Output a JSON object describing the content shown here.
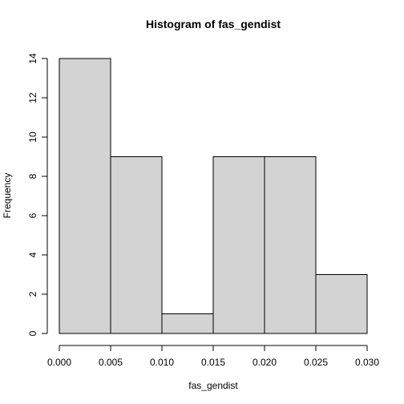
{
  "chart_data": {
    "type": "bar",
    "title": "Histogram of fas_gendist",
    "xlabel": "fas_gendist",
    "ylabel": "Frequency",
    "bin_edges": [
      0.0,
      0.005,
      0.01,
      0.015,
      0.02,
      0.025,
      0.03
    ],
    "values": [
      14,
      9,
      1,
      9,
      9,
      3
    ],
    "xlim": [
      0.0,
      0.03
    ],
    "ylim": [
      0,
      14
    ],
    "x_ticks": [
      "0.000",
      "0.005",
      "0.010",
      "0.015",
      "0.020",
      "0.025",
      "0.030"
    ],
    "y_ticks": [
      "0",
      "2",
      "4",
      "6",
      "8",
      "10",
      "12",
      "14"
    ],
    "bar_color": "#d3d3d3",
    "grid": false,
    "legend": "none"
  }
}
